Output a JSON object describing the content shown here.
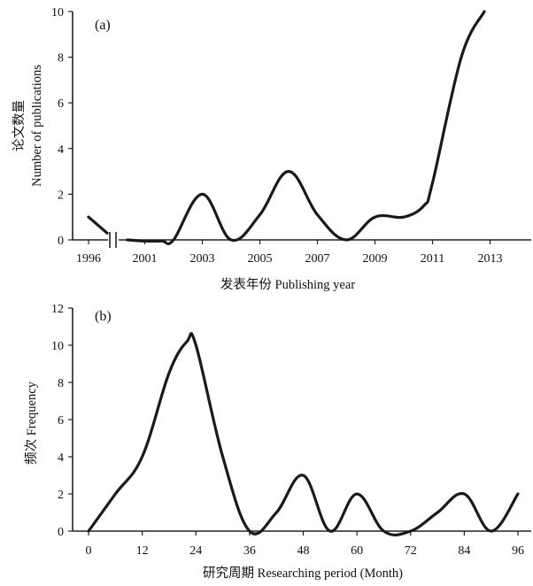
{
  "chart_data": [
    {
      "panel_label": "(a)",
      "type": "line",
      "xlabel": "发表年份 Publishing year",
      "ylabel_cn": "论文数量",
      "ylabel_en": "Number of publications",
      "ylim": [
        0,
        10
      ],
      "yticks": [
        "0",
        "2",
        "4",
        "6",
        "8",
        "10"
      ],
      "xticks": [
        "1996",
        "2001",
        "2003",
        "2005",
        "2007",
        "2009",
        "2011",
        "2013"
      ],
      "axis_break": "between 1996 and 2001",
      "x": [
        1996,
        1996.7,
        2000.4,
        2001,
        2001.6,
        2002,
        2003,
        2004,
        2005,
        2006,
        2007,
        2008,
        2009,
        2010,
        2010.7,
        2011,
        2012,
        2012.8
      ],
      "y": [
        1,
        0.3,
        0,
        -0.05,
        -0.05,
        0,
        2,
        0,
        1.1,
        3,
        1.1,
        0,
        1,
        1,
        1.5,
        2.5,
        8,
        10
      ]
    },
    {
      "panel_label": "(b)",
      "type": "line",
      "xlabel": "研究周期 Researching period (Month)",
      "ylabel": "频次 Frequency",
      "ylim": [
        0,
        12
      ],
      "yticks": [
        "0",
        "2",
        "4",
        "6",
        "8",
        "10",
        "12"
      ],
      "xticks": [
        "0",
        "12",
        "24",
        "36",
        "48",
        "60",
        "72",
        "84",
        "96"
      ],
      "x": [
        0,
        6,
        12,
        18,
        22,
        24,
        30,
        36,
        42,
        48,
        54,
        60,
        66,
        72,
        78,
        84,
        90,
        96
      ],
      "y": [
        0,
        2,
        4,
        8.5,
        10.2,
        10,
        4,
        0,
        1,
        3,
        0,
        2,
        0,
        0,
        1,
        2,
        0,
        2
      ]
    }
  ]
}
